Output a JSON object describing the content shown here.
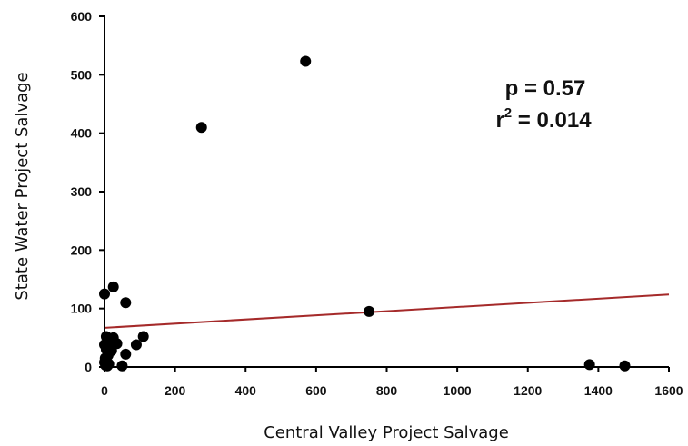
{
  "chart_data": {
    "type": "scatter",
    "xlabel": "Central Valley Project Salvage",
    "ylabel": "State Water Project Salvage",
    "xlim": [
      0,
      1600
    ],
    "ylim": [
      0,
      600
    ],
    "xticks": [
      0,
      200,
      400,
      600,
      800,
      1000,
      1200,
      1400,
      1600
    ],
    "yticks": [
      0,
      100,
      200,
      300,
      400,
      500,
      600
    ],
    "xtick_labels": [
      "0",
      "200",
      "400",
      "600",
      "800",
      "1000",
      "1200",
      "1400",
      "1600"
    ],
    "ytick_labels": [
      "0",
      "100",
      "200",
      "300",
      "400",
      "500",
      "600"
    ],
    "grid": false,
    "points": [
      {
        "x": 570,
        "y": 523
      },
      {
        "x": 275,
        "y": 410
      },
      {
        "x": 750,
        "y": 95
      },
      {
        "x": 1375,
        "y": 4
      },
      {
        "x": 1475,
        "y": 2
      },
      {
        "x": 25,
        "y": 137
      },
      {
        "x": 0,
        "y": 125
      },
      {
        "x": 60,
        "y": 110
      },
      {
        "x": 110,
        "y": 52
      },
      {
        "x": 90,
        "y": 38
      },
      {
        "x": 60,
        "y": 22
      },
      {
        "x": 50,
        "y": 2
      },
      {
        "x": 35,
        "y": 40
      },
      {
        "x": 25,
        "y": 50
      },
      {
        "x": 15,
        "y": 45
      },
      {
        "x": 5,
        "y": 52
      },
      {
        "x": 0,
        "y": 38
      },
      {
        "x": 5,
        "y": 30
      },
      {
        "x": 10,
        "y": 20
      },
      {
        "x": 2,
        "y": 15
      },
      {
        "x": 0,
        "y": 8
      },
      {
        "x": 3,
        "y": 3
      },
      {
        "x": 8,
        "y": 2
      },
      {
        "x": 12,
        "y": 5
      },
      {
        "x": 20,
        "y": 28
      }
    ],
    "trendline": {
      "x": [
        0,
        1600
      ],
      "y": [
        67,
        124
      ],
      "color": "#a52a2a"
    },
    "annotations": {
      "p_text": "p = 0.57",
      "r2_base": "r",
      "r2_exp": "2",
      "r2_value": " = 0.014"
    },
    "point_color": "#000000"
  }
}
